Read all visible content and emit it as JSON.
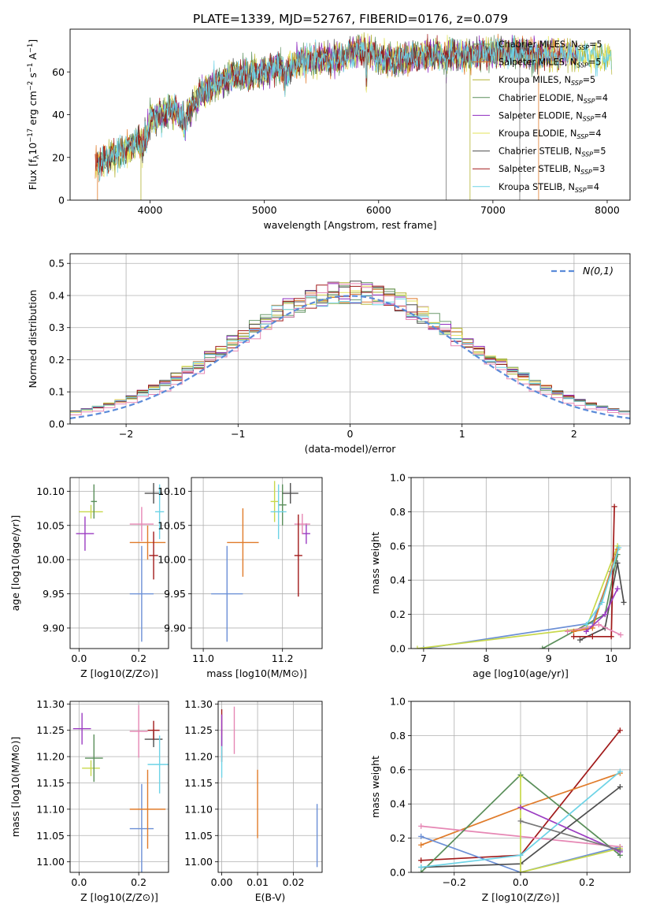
{
  "figure_title": "PLATE=1339, MJD=52767, FIBERID=0176, z=0.079",
  "model_colors": [
    "#6b9a6b",
    "#e07b2a",
    "#b2b232",
    "#5a8f5a",
    "#8e2bbf",
    "#e3e35a",
    "#4d4d4d",
    "#a11a1a",
    "#6dd3e6"
  ],
  "chart_data": [
    {
      "id": "spectrum",
      "type": "line",
      "title": "PLATE=1339, MJD=52767, FIBERID=0176, z=0.079",
      "xlabel": "wavelength [Angstrom, rest frame]",
      "ylabel": "Flux [f_λ 10^-17 erg cm^-2 s^-1 A^-1]",
      "xlim": [
        3300,
        8200
      ],
      "ylim": [
        0,
        80
      ],
      "xticks": [
        4000,
        5000,
        6000,
        7000,
        8000
      ],
      "yticks": [
        0,
        20,
        40,
        60
      ],
      "legend_position": "top-right",
      "series_names": [
        "Chabrier MILES, N_SSP=5",
        "Salpeter MILES, N_SSP=5",
        "Kroupa MILES, N_SSP=5",
        "Chabrier ELODIE, N_SSP=4",
        "Salpeter ELODIE, N_SSP=4",
        "Kroupa ELODIE, N_SSP=4",
        "Chabrier STELIB, N_SSP=5",
        "Salpeter STELIB, N_SSP=3",
        "Kroupa STELIB, N_SSP=4"
      ],
      "continuum": {
        "wavelength": [
          3550,
          3650,
          3750,
          3850,
          3950,
          4000,
          4100,
          4200,
          4300,
          4400,
          4500,
          4600,
          4700,
          4800,
          4900,
          5000,
          5100,
          5200,
          5300,
          5400,
          5500,
          5600,
          5700,
          5800,
          5900,
          6000,
          6200,
          6400,
          6600,
          6800,
          7000,
          7200,
          7400,
          7600,
          7800,
          8000
        ],
        "flux": [
          17,
          20,
          23,
          26,
          29,
          37,
          40,
          43,
          38,
          47,
          52,
          55,
          58,
          59,
          59,
          60,
          63,
          61,
          65,
          65,
          66,
          66,
          67,
          70,
          70,
          66,
          66,
          68,
          68,
          68,
          69,
          69,
          68,
          68,
          68,
          67
        ]
      }
    },
    {
      "id": "residuals",
      "type": "line",
      "xlabel": "(data-model)/error",
      "ylabel": "Normed distribution",
      "xlim": [
        -2.5,
        2.5
      ],
      "ylim": [
        0,
        0.53
      ],
      "xticks": [
        -2,
        -1,
        0,
        1,
        2
      ],
      "yticks": [
        0.0,
        0.1,
        0.2,
        0.3,
        0.4,
        0.5
      ],
      "legend_position": "top-right",
      "reference_label": "N(0,1)",
      "reference_color": "#5b8bd9"
    },
    {
      "id": "age-vs-Z",
      "type": "scatter",
      "xlabel": "Z [log10(Z/Z⊙)]",
      "ylabel": "age  [log10(age/yr)]",
      "xlim": [
        -0.03,
        0.3
      ],
      "ylim": [
        9.87,
        10.12
      ],
      "xticks": [
        0.0,
        0.2
      ],
      "yticks": [
        9.9,
        9.95,
        10.0,
        10.05,
        10.1
      ],
      "points": [
        {
          "x": 0.21,
          "y": 9.95,
          "xerr": 0.04,
          "yerr": 0.07,
          "color": "#6b8fd6"
        },
        {
          "x": 0.23,
          "y": 10.025,
          "xerr": 0.06,
          "yerr": 0.025,
          "color": "#e07b2a"
        },
        {
          "x": 0.04,
          "y": 10.07,
          "xerr": 0.04,
          "yerr": 0.01,
          "color": "#c8d84b"
        },
        {
          "x": 0.05,
          "y": 10.085,
          "xerr": 0.01,
          "yerr": 0.025,
          "color": "#5a8f5a"
        },
        {
          "x": 0.02,
          "y": 10.038,
          "xerr": 0.03,
          "yerr": 0.025,
          "color": "#9b3cc2"
        },
        {
          "x": 0.21,
          "y": 10.052,
          "xerr": 0.04,
          "yerr": 0.025,
          "color": "#e687b4"
        },
        {
          "x": 0.25,
          "y": 10.097,
          "xerr": 0.03,
          "yerr": 0.015,
          "color": "#4d4d4d"
        },
        {
          "x": 0.25,
          "y": 10.006,
          "xerr": 0.015,
          "yerr": 0.035,
          "color": "#a11a1a"
        },
        {
          "x": 0.27,
          "y": 10.07,
          "xerr": 0.015,
          "yerr": 0.04,
          "color": "#6dd3e6"
        }
      ]
    },
    {
      "id": "age-vs-mass",
      "type": "scatter",
      "xlabel": "mass [log10(M/M⊙)]",
      "xlim": [
        10.97,
        11.3
      ],
      "ylim": [
        9.87,
        10.12
      ],
      "xticks": [
        11.0,
        11.2
      ],
      "yticks": [
        9.9,
        9.95,
        10.0,
        10.05,
        10.1
      ],
      "points": [
        {
          "x": 11.06,
          "y": 9.95,
          "xerr": 0.04,
          "yerr": 0.07,
          "color": "#6b8fd6"
        },
        {
          "x": 11.1,
          "y": 10.025,
          "xerr": 0.04,
          "yerr": 0.05,
          "color": "#e07b2a"
        },
        {
          "x": 11.18,
          "y": 10.085,
          "xerr": 0.01,
          "yerr": 0.03,
          "color": "#c8d84b"
        },
        {
          "x": 11.2,
          "y": 10.08,
          "xerr": 0.01,
          "yerr": 0.03,
          "color": "#5a8f5a"
        },
        {
          "x": 11.26,
          "y": 10.038,
          "xerr": 0.01,
          "yerr": 0.015,
          "color": "#9b3cc2"
        },
        {
          "x": 11.25,
          "y": 10.052,
          "xerr": 0.02,
          "yerr": 0.015,
          "color": "#e687b4"
        },
        {
          "x": 11.22,
          "y": 10.097,
          "xerr": 0.02,
          "yerr": 0.015,
          "color": "#4d4d4d"
        },
        {
          "x": 11.24,
          "y": 10.006,
          "xerr": 0.01,
          "yerr": 0.06,
          "color": "#a11a1a"
        },
        {
          "x": 11.19,
          "y": 10.07,
          "xerr": 0.02,
          "yerr": 0.04,
          "color": "#6dd3e6"
        }
      ]
    },
    {
      "id": "weight-vs-age",
      "type": "line",
      "xlabel": "age  [log10(age/yr)]",
      "ylabel": "mass weight",
      "xlim": [
        6.8,
        10.3
      ],
      "ylim": [
        0,
        1.0
      ],
      "xticks": [
        7,
        8,
        9,
        10
      ],
      "yticks": [
        0.0,
        0.2,
        0.4,
        0.6,
        0.8,
        1.0
      ],
      "series": [
        {
          "color": "#6b8fd6",
          "x": [
            7.0,
            9.7,
            10.0
          ],
          "y": [
            0.0,
            0.15,
            0.45
          ]
        },
        {
          "color": "#c8d84b",
          "x": [
            6.9,
            9.6,
            10.1
          ],
          "y": [
            0.0,
            0.12,
            0.6
          ]
        },
        {
          "color": "#5a8f5a",
          "x": [
            8.9,
            9.9,
            10.1
          ],
          "y": [
            0.0,
            0.2,
            0.55
          ]
        },
        {
          "color": "#4d4d4d",
          "x": [
            9.5,
            9.9,
            10.1,
            10.2
          ],
          "y": [
            0.05,
            0.12,
            0.5,
            0.27
          ]
        },
        {
          "color": "#a11a1a",
          "x": [
            9.4,
            9.7,
            10.0,
            10.05
          ],
          "y": [
            0.07,
            0.07,
            0.07,
            0.83
          ]
        },
        {
          "color": "#e687b4",
          "x": [
            9.3,
            9.8,
            10.15
          ],
          "y": [
            0.1,
            0.14,
            0.08
          ]
        },
        {
          "color": "#e07b2a",
          "x": [
            9.4,
            9.7,
            10.1
          ],
          "y": [
            0.1,
            0.12,
            0.58
          ]
        },
        {
          "color": "#9b3cc2",
          "x": [
            9.6,
            9.9,
            10.1
          ],
          "y": [
            0.1,
            0.2,
            0.35
          ]
        },
        {
          "color": "#6dd3e6",
          "x": [
            9.6,
            9.85,
            10.12
          ],
          "y": [
            0.14,
            0.27,
            0.59
          ]
        }
      ]
    },
    {
      "id": "mass-vs-Z",
      "type": "scatter",
      "xlabel": "Z [log10(Z/Z⊙)]",
      "ylabel": "mass [log10(M/M⊙)]",
      "xlim": [
        -0.03,
        0.3
      ],
      "ylim": [
        10.98,
        11.305
      ],
      "xticks": [
        0.0,
        0.2
      ],
      "yticks": [
        11.0,
        11.05,
        11.1,
        11.15,
        11.2,
        11.25,
        11.3
      ],
      "points": [
        {
          "x": 0.21,
          "y": 11.063,
          "xerr": 0.04,
          "yerr": 0.085,
          "color": "#6b8fd6"
        },
        {
          "x": 0.23,
          "y": 11.1,
          "xerr": 0.06,
          "yerr": 0.075,
          "color": "#e07b2a"
        },
        {
          "x": 0.04,
          "y": 11.178,
          "xerr": 0.03,
          "yerr": 0.015,
          "color": "#c8d84b"
        },
        {
          "x": 0.05,
          "y": 11.197,
          "xerr": 0.03,
          "yerr": 0.045,
          "color": "#5a8f5a"
        },
        {
          "x": 0.01,
          "y": 11.253,
          "xerr": 0.03,
          "yerr": 0.03,
          "color": "#9b3cc2"
        },
        {
          "x": 0.2,
          "y": 11.248,
          "xerr": 0.03,
          "yerr": 0.05,
          "color": "#e687b4"
        },
        {
          "x": 0.25,
          "y": 11.233,
          "xerr": 0.03,
          "yerr": 0.015,
          "color": "#4d4d4d"
        },
        {
          "x": 0.25,
          "y": 11.25,
          "xerr": 0.02,
          "yerr": 0.018,
          "color": "#a11a1a"
        },
        {
          "x": 0.27,
          "y": 11.185,
          "xerr": 0.04,
          "yerr": 0.055,
          "color": "#6dd3e6"
        }
      ]
    },
    {
      "id": "mass-vs-EBV",
      "type": "scatter",
      "xlabel": "E(B-V)",
      "xlim": [
        -0.001,
        0.028
      ],
      "ylim": [
        10.98,
        11.305
      ],
      "xticks": [
        0.0,
        0.01,
        0.02
      ],
      "yticks": [
        11.0,
        11.05,
        11.1,
        11.15,
        11.2,
        11.25,
        11.3
      ],
      "points": [
        {
          "x": 0.0266,
          "y": 11.05,
          "yerr": 0.06,
          "color": "#6b8fd6"
        },
        {
          "x": 0.01,
          "y": 11.11,
          "yerr": 0.065,
          "color": "#e07b2a"
        },
        {
          "x": 0.0,
          "y": 11.24,
          "yerr": 0.05,
          "color": "#a11a1a"
        },
        {
          "x": 0.0,
          "y": 11.2,
          "yerr": 0.04,
          "color": "#6dd3e6"
        },
        {
          "x": 0.0035,
          "y": 11.25,
          "yerr": 0.045,
          "color": "#e687b4"
        },
        {
          "x": 0.0,
          "y": 11.25,
          "yerr": 0.03,
          "color": "#9b3cc2"
        }
      ]
    },
    {
      "id": "weight-vs-Z",
      "type": "line",
      "xlabel": "Z [log10(Z/Z⊙)]",
      "ylabel": "mass weight",
      "xlim": [
        -0.33,
        0.33
      ],
      "ylim": [
        0,
        1.0
      ],
      "xticks": [
        -0.2,
        0.0,
        0.2
      ],
      "yticks": [
        0.0,
        0.2,
        0.4,
        0.6,
        0.8,
        1.0
      ],
      "series": [
        {
          "color": "#a11a1a",
          "x": [
            -0.3,
            0.0,
            0.3
          ],
          "y": [
            0.07,
            0.1,
            0.83
          ]
        },
        {
          "color": "#e07b2a",
          "x": [
            -0.3,
            0.0,
            0.3
          ],
          "y": [
            0.16,
            0.38,
            0.58
          ]
        },
        {
          "color": "#6b8fd6",
          "x": [
            -0.3,
            0.0,
            0.3
          ],
          "y": [
            0.21,
            0.0,
            0.15
          ]
        },
        {
          "color": "#e687b4",
          "x": [
            -0.3,
            0.3
          ],
          "y": [
            0.27,
            0.15
          ]
        },
        {
          "color": "#5a8f5a",
          "x": [
            -0.3,
            0.0,
            0.3
          ],
          "y": [
            0.0,
            0.57,
            0.1
          ]
        },
        {
          "color": "#4d4d4d",
          "x": [
            -0.3,
            0.0,
            0.3
          ],
          "y": [
            0.03,
            0.05,
            0.5
          ]
        },
        {
          "color": "#c8d84b",
          "x": [
            0.0,
            0.0,
            0.3
          ],
          "y": [
            0.56,
            0.0,
            0.14
          ]
        },
        {
          "color": "#9b3cc2",
          "x": [
            0.0,
            0.3
          ],
          "y": [
            0.38,
            0.12
          ]
        },
        {
          "color": "#6dd3e6",
          "x": [
            -0.3,
            0.0,
            0.3
          ],
          "y": [
            0.03,
            0.1,
            0.59
          ]
        },
        {
          "color": "#777777",
          "x": [
            0.0,
            0.3
          ],
          "y": [
            0.3,
            0.13
          ]
        }
      ]
    }
  ]
}
